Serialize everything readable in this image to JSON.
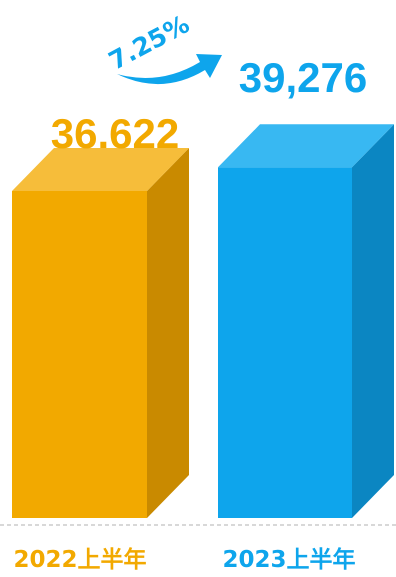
{
  "chart_data": {
    "type": "bar",
    "categories": [
      "2022上半年",
      "2023上半年"
    ],
    "values": [
      36622,
      39276
    ],
    "value_labels": [
      "36.622",
      "39,276"
    ],
    "growth_label": "7.25%",
    "grid": false,
    "legend": "none",
    "colors": {
      "bar1_front": "#f2a900",
      "bar1_side": "#c98a00",
      "bar1_top": "#f6bd3a",
      "bar2_front": "#0ea5ec",
      "bar2_side": "#0b86c2",
      "bar2_top": "#38b8f2",
      "label1": "#f2a900",
      "label2": "#0ea5ec",
      "axis_line": "#b0b0b0"
    }
  }
}
